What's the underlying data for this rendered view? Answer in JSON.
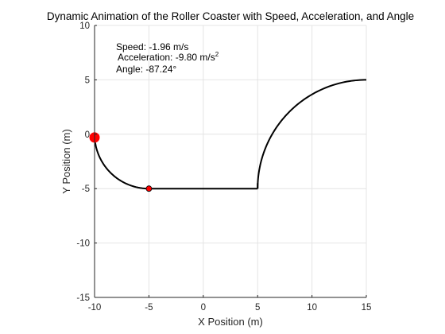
{
  "chart_data": {
    "type": "line",
    "title": "Dynamic Animation of the Roller Coaster with Speed, Acceleration, and Angle",
    "xlabel": "X Position (m)",
    "ylabel": "Y Position (m)",
    "xlim": [
      -10,
      15
    ],
    "ylim": [
      -15,
      10
    ],
    "xticks": [
      -10,
      -5,
      0,
      5,
      10,
      15
    ],
    "yticks": [
      -15,
      -10,
      -5,
      0,
      5,
      10
    ],
    "xtick_labels": [
      "-10",
      "-5",
      "0",
      "5",
      "10",
      "15"
    ],
    "ytick_labels": [
      "-15",
      "-10",
      "-5",
      "0",
      "5",
      "10"
    ],
    "grid": true,
    "colors": {
      "track": "#000000",
      "marker": "#ff0000",
      "grid": "#e4e4e4",
      "axis": "#262626"
    },
    "series": [
      {
        "role": "track",
        "segments": [
          {
            "shape": "circular-arc",
            "center": [
              -5,
              0
            ],
            "radius": 5,
            "from_deg": 180,
            "to_deg": 270
          },
          {
            "shape": "line",
            "x": [
              -5,
              5
            ],
            "y": [
              -5,
              -5
            ]
          },
          {
            "shape": "circular-arc",
            "center": [
              15,
              -5
            ],
            "radius": 10,
            "from_deg": 180,
            "to_deg": 90
          },
          {
            "shape": "line",
            "x": [
              5,
              5
            ],
            "y": [
              -5,
              -4.5
            ]
          }
        ]
      }
    ],
    "markers": [
      {
        "role": "current-position",
        "x": -10,
        "y": -0.3,
        "size": "large"
      },
      {
        "role": "reference-point",
        "x": -5,
        "y": -5,
        "size": "small"
      }
    ],
    "annotations": {
      "speed": "Speed: -1.96 m/s",
      "acceleration": "Acceleration:  -9.80  m/s",
      "acceleration_superscript": "2",
      "angle": "Angle: -87.24°"
    }
  }
}
